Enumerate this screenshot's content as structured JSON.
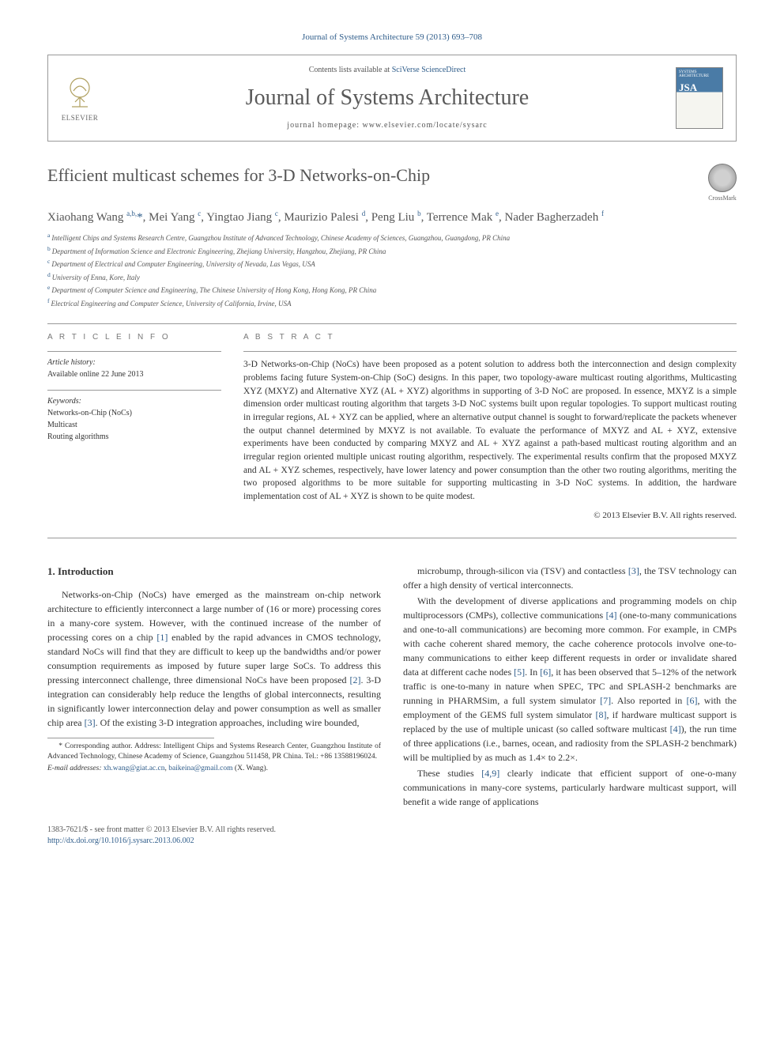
{
  "top_citation": "Journal of Systems Architecture 59 (2013) 693–708",
  "header": {
    "contents_prefix": "Contents lists available at ",
    "contents_link": "SciVerse ScienceDirect",
    "journal_name": "Journal of Systems Architecture",
    "homepage_prefix": "journal homepage: ",
    "homepage_url": "www.elsevier.com/locate/sysarc",
    "elsevier_label": "ELSEVIER",
    "cover_top": "SYSTEMS ARCHITECTURE",
    "cover_acr": "JSA"
  },
  "crossmark_label": "CrossMark",
  "title": "Efficient multicast schemes for 3-D Networks-on-Chip",
  "authors_html": "Xiaohang Wang <sup>a,b,</sup><span class='star'>*</span>, Mei Yang <sup>c</sup>, Yingtao Jiang <sup>c</sup>, Maurizio Palesi <sup>d</sup>, Peng Liu <sup>b</sup>, Terrence Mak <sup>e</sup>, Nader Bagherzadeh <sup>f</sup>",
  "affiliations": [
    {
      "k": "a",
      "t": "Intelligent Chips and Systems Research Centre, Guangzhou Institute of Advanced Technology, Chinese Academy of Sciences, Guangzhou, Guangdong, PR China"
    },
    {
      "k": "b",
      "t": "Department of Information Science and Electronic Engineering, Zhejiang University, Hangzhou, Zhejiang, PR China"
    },
    {
      "k": "c",
      "t": "Department of Electrical and Computer Engineering, University of Nevada, Las Vegas, USA"
    },
    {
      "k": "d",
      "t": "University of Enna, Kore, Italy"
    },
    {
      "k": "e",
      "t": "Department of Computer Science and Engineering, The Chinese University of Hong Kong, Hong Kong, PR China"
    },
    {
      "k": "f",
      "t": "Electrical Engineering and Computer Science, University of California, Irvine, USA"
    }
  ],
  "info": {
    "head": "A R T I C L E   I N F O",
    "history_label": "Article history:",
    "history_value": "Available online 22 June 2013",
    "keywords_label": "Keywords:",
    "keywords": [
      "Networks-on-Chip (NoCs)",
      "Multicast",
      "Routing algorithms"
    ]
  },
  "abstract": {
    "head": "A B S T R A C T",
    "text": "3-D Networks-on-Chip (NoCs) have been proposed as a potent solution to address both the interconnection and design complexity problems facing future System-on-Chip (SoC) designs. In this paper, two topology-aware multicast routing algorithms, Multicasting XYZ (MXYZ) and Alternative XYZ (AL + XYZ) algorithms in supporting of 3-D NoC are proposed. In essence, MXYZ is a simple dimension order multicast routing algorithm that targets 3-D NoC systems built upon regular topologies. To support multicast routing in irregular regions, AL + XYZ can be applied, where an alternative output channel is sought to forward/replicate the packets whenever the output channel determined by MXYZ is not available. To evaluate the performance of MXYZ and AL + XYZ, extensive experiments have been conducted by comparing MXYZ and AL + XYZ against a path-based multicast routing algorithm and an irregular region oriented multiple unicast routing algorithm, respectively. The experimental results confirm that the proposed MXYZ and AL + XYZ schemes, respectively, have lower latency and power consumption than the other two routing algorithms, meriting the two proposed algorithms to be more suitable for supporting multicasting in 3-D NoC systems. In addition, the hardware implementation cost of AL + XYZ is shown to be quite modest.",
    "copyright": "© 2013 Elsevier B.V. All rights reserved."
  },
  "intro": {
    "heading": "1. Introduction",
    "p1": "Networks-on-Chip (NoCs) have emerged as the mainstream on-chip network architecture to efficiently interconnect a large number of (16 or more) processing cores in a many-core system. However, with the continued increase of the number of processing cores on a chip [1] enabled by the rapid advances in CMOS technology, standard NoCs will find that they are difficult to keep up the bandwidths and/or power consumption requirements as imposed by future super large SoCs. To address this pressing interconnect challenge, three dimensional NoCs have been proposed [2]. 3-D integration can considerably help reduce the lengths of global interconnects, resulting in significantly lower interconnection delay and power consumption as well as smaller chip area [3]. Of the existing 3-D integration approaches, including wire bounded,",
    "p2": "microbump, through-silicon via (TSV) and contactless [3], the TSV technology can offer a high density of vertical interconnects.",
    "p3": "With the development of diverse applications and programming models on chip multiprocessors (CMPs), collective communications [4] (one-to-many communications and one-to-all communications) are becoming more common. For example, in CMPs with cache coherent shared memory, the cache coherence protocols involve one-to-many communications to either keep different requests in order or invalidate shared data at different cache nodes [5]. In [6], it has been observed that 5–12% of the network traffic is one-to-many in nature when SPEC, TPC and SPLASH-2 benchmarks are running in PHARMSim, a full system simulator [7]. Also reported in [6], with the employment of the GEMS full system simulator [8], if hardware multicast support is replaced by the use of multiple unicast (so called software multicast [4]), the run time of three applications (i.e., barnes, ocean, and radiosity from the SPLASH-2 benchmark) will be multiplied by as much as 1.4× to 2.2×.",
    "p4": "These studies [4,9] clearly indicate that efficient support of one-o-many communications in many-core systems, particularly hardware multicast support, will benefit a wide range of applications"
  },
  "footnotes": {
    "corr": "* Corresponding author. Address: Intelligent Chips and Systems Research Center, Guangzhou Institute of Advanced Technology, Chinese Academy of Science, Guangzhou 511458, PR China. Tel.: +86 13588196024.",
    "email_label": "E-mail addresses: ",
    "email1": "xh.wang@giat.ac.cn",
    "email2": "baikeina@gmail.com",
    "email_suffix": " (X. Wang)."
  },
  "footer": {
    "issn": "1383-7621/$ - see front matter © 2013 Elsevier B.V. All rights reserved.",
    "doi": "http://dx.doi.org/10.1016/j.sysarc.2013.06.002"
  },
  "colors": {
    "link": "#2e5c8a",
    "text": "#333333",
    "heading": "#555555",
    "rule": "#999999"
  }
}
